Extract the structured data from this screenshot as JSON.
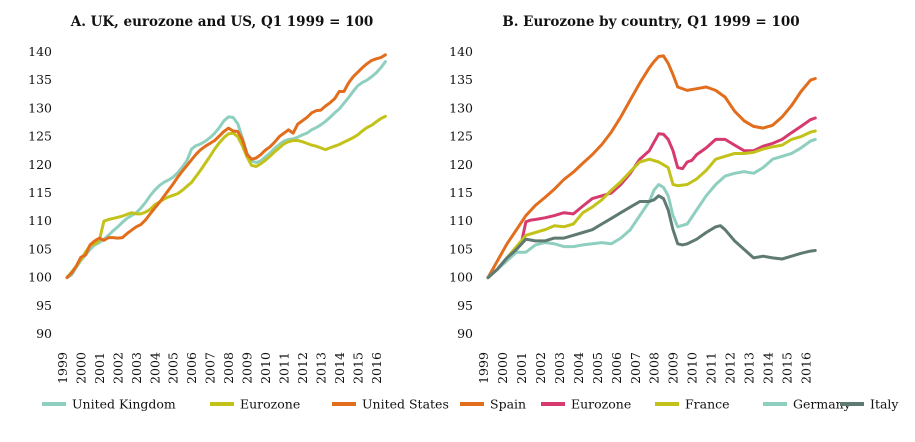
{
  "chart_data": [
    {
      "type": "line",
      "title": "A. UK, eurozone and US, Q1 1999 = 100",
      "xlabel": "",
      "ylabel": "",
      "xlim": [
        1999,
        2016.5
      ],
      "ylim": [
        90,
        140
      ],
      "y_ticks": [
        90,
        95,
        100,
        105,
        110,
        115,
        120,
        125,
        130,
        135,
        140
      ],
      "x_ticks": [
        1999,
        2000,
        2001,
        2002,
        2003,
        2004,
        2005,
        2006,
        2007,
        2008,
        2009,
        2010,
        2011,
        2012,
        2013,
        2014,
        2015,
        2016
      ],
      "grid": false,
      "legend": "bottom",
      "series": [
        {
          "name": "United Kingdom",
          "color": "#8fcfc0",
          "x": [
            1999.0,
            1999.25,
            1999.5,
            1999.75,
            2000.0,
            2000.25,
            2000.5,
            2000.75,
            2001.0,
            2001.25,
            2001.5,
            2001.75,
            2002.0,
            2002.25,
            2002.5,
            2002.75,
            2003.0,
            2003.25,
            2003.5,
            2003.75,
            2004.0,
            2004.25,
            2004.5,
            2004.75,
            2005.0,
            2005.25,
            2005.5,
            2005.75,
            2006.0,
            2006.25,
            2006.5,
            2006.75,
            2007.0,
            2007.25,
            2007.5,
            2007.75,
            2008.0,
            2008.25,
            2008.5,
            2008.75,
            2009.0,
            2009.25,
            2009.5,
            2009.75,
            2010.0,
            2010.25,
            2010.5,
            2010.75,
            2011.0,
            2011.25,
            2011.5,
            2011.75,
            2012.0,
            2012.25,
            2012.5,
            2012.75,
            2013.0,
            2013.25,
            2013.5,
            2013.75,
            2014.0,
            2014.25,
            2014.5,
            2014.75,
            2015.0,
            2015.25,
            2015.5,
            2015.75,
            2016.0,
            2016.25
          ],
          "values": [
            100.0,
            100.5,
            101.8,
            103.0,
            104.0,
            105.0,
            105.8,
            106.2,
            106.8,
            107.5,
            108.3,
            109.0,
            109.8,
            110.5,
            111.0,
            111.5,
            112.3,
            113.3,
            114.5,
            115.5,
            116.3,
            116.9,
            117.3,
            117.8,
            118.6,
            119.6,
            120.8,
            122.8,
            123.4,
            123.7,
            124.2,
            124.8,
            125.6,
            126.6,
            127.8,
            128.5,
            128.4,
            127.3,
            124.8,
            122.1,
            120.7,
            120.4,
            120.7,
            121.4,
            122.1,
            122.9,
            123.6,
            124.2,
            124.5,
            124.6,
            124.9,
            125.3,
            125.6,
            126.2,
            126.6,
            127.1,
            127.7,
            128.4,
            129.2,
            129.9,
            130.9,
            131.9,
            133.0,
            134.0,
            134.6,
            135.0,
            135.6,
            136.3,
            137.2,
            138.3
          ]
        },
        {
          "name": "Eurozone",
          "color": "#c2c21a",
          "x": [
            1999.0,
            1999.25,
            1999.5,
            1999.75,
            2000.0,
            2000.25,
            2000.5,
            2000.75,
            2001.0,
            2001.25,
            2001.5,
            2001.75,
            2002.0,
            2002.25,
            2002.5,
            2002.75,
            2003.0,
            2003.25,
            2003.5,
            2003.75,
            2004.0,
            2004.25,
            2004.5,
            2004.75,
            2005.0,
            2005.25,
            2005.5,
            2005.75,
            2006.0,
            2006.25,
            2006.5,
            2006.75,
            2007.0,
            2007.25,
            2007.5,
            2007.75,
            2008.0,
            2008.25,
            2008.5,
            2008.75,
            2009.0,
            2009.25,
            2009.5,
            2009.75,
            2010.0,
            2010.25,
            2010.5,
            2010.75,
            2011.0,
            2011.25,
            2011.5,
            2011.75,
            2012.0,
            2012.25,
            2012.5,
            2012.75,
            2013.0,
            2013.25,
            2013.5,
            2013.75,
            2014.0,
            2014.25,
            2014.5,
            2014.75,
            2015.0,
            2015.25,
            2015.5,
            2015.75,
            2016.0,
            2016.25
          ],
          "values": [
            100.0,
            101.0,
            102.0,
            103.2,
            104.5,
            105.7,
            106.0,
            106.6,
            110.0,
            110.3,
            110.5,
            110.7,
            110.9,
            111.2,
            111.5,
            111.3,
            111.3,
            111.6,
            112.1,
            112.9,
            113.4,
            113.9,
            114.3,
            114.6,
            114.9,
            115.5,
            116.2,
            116.9,
            118.0,
            119.1,
            120.3,
            121.5,
            122.8,
            123.9,
            124.8,
            125.5,
            125.6,
            125.0,
            123.4,
            121.4,
            119.9,
            119.7,
            120.2,
            120.8,
            121.5,
            122.3,
            123.0,
            123.7,
            124.1,
            124.3,
            124.3,
            124.1,
            123.8,
            123.5,
            123.3,
            123.0,
            122.7,
            123.0,
            123.3,
            123.6,
            124.0,
            124.4,
            124.8,
            125.3,
            126.0,
            126.6,
            127.0,
            127.6,
            128.2,
            128.6
          ]
        },
        {
          "name": "United States",
          "color": "#e26d1c",
          "x": [
            1999.0,
            1999.25,
            1999.5,
            1999.75,
            2000.0,
            2000.25,
            2000.5,
            2000.75,
            2001.0,
            2001.25,
            2001.5,
            2001.75,
            2002.0,
            2002.25,
            2002.5,
            2002.75,
            2003.0,
            2003.25,
            2003.5,
            2003.75,
            2004.0,
            2004.25,
            2004.5,
            2004.75,
            2005.0,
            2005.25,
            2005.5,
            2005.75,
            2006.0,
            2006.25,
            2006.5,
            2006.75,
            2007.0,
            2007.25,
            2007.5,
            2007.75,
            2008.0,
            2008.25,
            2008.5,
            2008.75,
            2009.0,
            2009.25,
            2009.5,
            2009.75,
            2010.0,
            2010.25,
            2010.5,
            2010.75,
            2011.0,
            2011.25,
            2011.5,
            2011.75,
            2012.0,
            2012.25,
            2012.5,
            2012.75,
            2013.0,
            2013.25,
            2013.5,
            2013.75,
            2014.0,
            2014.25,
            2014.5,
            2014.75,
            2015.0,
            2015.25,
            2015.5,
            2015.75,
            2016.0,
            2016.25
          ],
          "values": [
            100.0,
            100.8,
            102.0,
            103.6,
            104.0,
            105.8,
            106.5,
            107.0,
            106.6,
            107.1,
            107.1,
            107.0,
            107.1,
            107.8,
            108.4,
            109.0,
            109.4,
            110.2,
            111.3,
            112.3,
            113.3,
            114.4,
            115.5,
            116.6,
            117.8,
            118.9,
            119.9,
            120.9,
            121.9,
            122.7,
            123.3,
            123.8,
            124.3,
            125.1,
            125.9,
            126.5,
            126.0,
            125.9,
            124.5,
            121.8,
            121.0,
            121.2,
            121.8,
            122.6,
            123.2,
            124.0,
            125.0,
            125.6,
            126.2,
            125.6,
            127.2,
            127.8,
            128.4,
            129.2,
            129.6,
            129.7,
            130.4,
            131.0,
            131.7,
            133.0,
            133.0,
            134.5,
            135.6,
            136.4,
            137.2,
            137.9,
            138.5,
            138.8,
            139.0,
            139.5
          ]
        }
      ]
    },
    {
      "type": "line",
      "title": "B. Eurozone by country, Q1 1999 = 100",
      "xlabel": "",
      "ylabel": "",
      "xlim": [
        1999,
        2016.5
      ],
      "ylim": [
        90,
        140
      ],
      "y_ticks": [
        90,
        95,
        100,
        105,
        110,
        115,
        120,
        125,
        130,
        135,
        140
      ],
      "x_ticks": [
        1999,
        2000,
        2001,
        2002,
        2003,
        2004,
        2005,
        2006,
        2007,
        2008,
        2009,
        2010,
        2011,
        2012,
        2013,
        2014,
        2015,
        2016
      ],
      "grid": false,
      "legend": "bottom",
      "series": [
        {
          "name": "Spain",
          "color": "#e26d1c",
          "x": [
            1999.0,
            1999.5,
            2000.0,
            2000.5,
            2001.0,
            2001.5,
            2002.0,
            2002.5,
            2003.0,
            2003.5,
            2004.0,
            2004.5,
            2005.0,
            2005.5,
            2006.0,
            2006.5,
            2007.0,
            2007.5,
            2007.75,
            2008.0,
            2008.25,
            2008.5,
            2008.75,
            2009.0,
            2009.5,
            2010.0,
            2010.5,
            2011.0,
            2011.5,
            2012.0,
            2012.5,
            2013.0,
            2013.5,
            2014.0,
            2014.5,
            2015.0,
            2015.5,
            2016.0,
            2016.25
          ],
          "values": [
            100.0,
            103.0,
            106.0,
            108.5,
            111.0,
            112.8,
            114.2,
            115.7,
            117.4,
            118.7,
            120.3,
            121.8,
            123.6,
            125.8,
            128.5,
            131.5,
            134.5,
            137.2,
            138.3,
            139.2,
            139.3,
            138.0,
            136.0,
            133.8,
            133.2,
            133.5,
            133.8,
            133.2,
            132.0,
            129.5,
            127.8,
            126.8,
            126.5,
            127.0,
            128.5,
            130.5,
            133.0,
            135.0,
            135.3
          ]
        },
        {
          "name": "Eurozone",
          "color": "#d63a6e",
          "x": [
            1999.0,
            1999.5,
            2000.0,
            2000.5,
            2000.75,
            2001.0,
            2001.25,
            2001.5,
            2002.0,
            2002.5,
            2003.0,
            2003.5,
            2004.0,
            2004.5,
            2005.0,
            2005.5,
            2006.0,
            2006.5,
            2007.0,
            2007.5,
            2007.75,
            2008.0,
            2008.25,
            2008.5,
            2008.75,
            2009.0,
            2009.25,
            2009.5,
            2009.75,
            2010.0,
            2010.5,
            2011.0,
            2011.5,
            2012.0,
            2012.5,
            2013.0,
            2013.5,
            2014.0,
            2014.5,
            2015.0,
            2015.5,
            2016.0,
            2016.25
          ],
          "values": [
            100.0,
            101.5,
            103.5,
            105.2,
            106.0,
            109.9,
            110.2,
            110.3,
            110.6,
            111.0,
            111.5,
            111.3,
            112.7,
            114.0,
            114.5,
            115.0,
            116.5,
            118.5,
            121.0,
            122.5,
            124.0,
            125.5,
            125.4,
            124.5,
            122.5,
            119.5,
            119.3,
            120.5,
            120.8,
            121.8,
            123.0,
            124.5,
            124.5,
            123.5,
            122.5,
            122.5,
            123.3,
            123.8,
            124.5,
            125.7,
            126.8,
            128.0,
            128.3
          ]
        },
        {
          "name": "France",
          "color": "#c2c21a",
          "x": [
            1999.0,
            1999.5,
            2000.0,
            2000.5,
            2001.0,
            2001.5,
            2002.0,
            2002.5,
            2003.0,
            2003.5,
            2004.0,
            2004.5,
            2005.0,
            2005.5,
            2006.0,
            2006.5,
            2007.0,
            2007.5,
            2008.0,
            2008.5,
            2008.75,
            2009.0,
            2009.5,
            2010.0,
            2010.5,
            2011.0,
            2011.5,
            2012.0,
            2012.5,
            2013.0,
            2013.5,
            2014.0,
            2014.5,
            2015.0,
            2015.5,
            2016.0,
            2016.25
          ],
          "values": [
            100.0,
            101.5,
            103.5,
            105.5,
            107.5,
            108.0,
            108.5,
            109.2,
            109.0,
            109.5,
            111.5,
            112.5,
            113.8,
            115.5,
            117.0,
            118.8,
            120.5,
            121.0,
            120.5,
            119.5,
            116.5,
            116.3,
            116.5,
            117.5,
            119.0,
            121.0,
            121.5,
            122.0,
            122.0,
            122.2,
            122.8,
            123.2,
            123.5,
            124.5,
            125.0,
            125.8,
            126.0
          ]
        },
        {
          "name": "Germany",
          "color": "#8fcfc0",
          "x": [
            1999.0,
            1999.5,
            2000.0,
            2000.5,
            2001.0,
            2001.5,
            2002.0,
            2002.5,
            2003.0,
            2003.5,
            2004.0,
            2004.5,
            2005.0,
            2005.5,
            2006.0,
            2006.5,
            2007.0,
            2007.5,
            2007.75,
            2008.0,
            2008.25,
            2008.5,
            2008.75,
            2009.0,
            2009.5,
            2010.0,
            2010.5,
            2011.0,
            2011.5,
            2012.0,
            2012.5,
            2013.0,
            2013.5,
            2014.0,
            2014.5,
            2015.0,
            2015.5,
            2016.0,
            2016.25
          ],
          "values": [
            100.0,
            101.5,
            103.0,
            104.5,
            104.5,
            105.8,
            106.2,
            106.0,
            105.5,
            105.5,
            105.8,
            106.0,
            106.2,
            106.0,
            107.0,
            108.5,
            111.0,
            113.5,
            115.5,
            116.5,
            116.0,
            114.5,
            111.0,
            109.0,
            109.5,
            112.0,
            114.5,
            116.5,
            118.0,
            118.5,
            118.8,
            118.5,
            119.5,
            121.0,
            121.5,
            122.0,
            123.0,
            124.2,
            124.5
          ]
        },
        {
          "name": "Italy",
          "color": "#5e7a72",
          "x": [
            1999.0,
            1999.5,
            2000.0,
            2000.5,
            2001.0,
            2001.5,
            2002.0,
            2002.5,
            2003.0,
            2003.5,
            2004.0,
            2004.5,
            2005.0,
            2005.5,
            2006.0,
            2006.5,
            2007.0,
            2007.5,
            2007.75,
            2008.0,
            2008.25,
            2008.5,
            2008.75,
            2009.0,
            2009.25,
            2009.5,
            2010.0,
            2010.5,
            2011.0,
            2011.25,
            2011.5,
            2012.0,
            2012.5,
            2013.0,
            2013.5,
            2014.0,
            2014.5,
            2015.0,
            2015.5,
            2016.0,
            2016.25
          ],
          "values": [
            100.0,
            101.5,
            103.5,
            105.0,
            106.8,
            106.5,
            106.5,
            107.0,
            107.0,
            107.5,
            108.0,
            108.5,
            109.5,
            110.5,
            111.5,
            112.5,
            113.5,
            113.5,
            113.8,
            114.5,
            114.0,
            112.0,
            108.5,
            106.0,
            105.8,
            106.0,
            106.8,
            108.0,
            109.0,
            109.2,
            108.5,
            106.5,
            105.0,
            103.5,
            103.8,
            103.5,
            103.3,
            103.8,
            104.3,
            104.7,
            104.8
          ]
        }
      ]
    }
  ]
}
